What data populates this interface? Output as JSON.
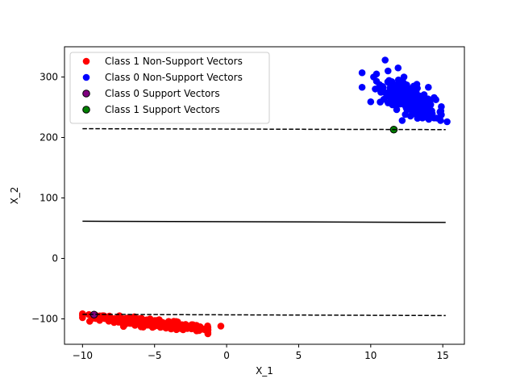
{
  "chart_data": {
    "type": "scatter",
    "title": "",
    "xlabel": "X_1",
    "ylabel": "X_2",
    "xlim": [
      -11.25,
      16.5
    ],
    "ylim": [
      -142,
      350
    ],
    "xticks": [
      -10,
      -5,
      0,
      5,
      10,
      15
    ],
    "yticks": [
      -100,
      0,
      100,
      200,
      300
    ],
    "legend_position": "upper-left",
    "series": [
      {
        "name": "Class 1 Non-Support Vectors",
        "color": "#ff0000",
        "edge": "none",
        "cluster": {
          "x_mean": -5.2,
          "x_sd": 1.9,
          "slope": -1.05,
          "intercept": -116,
          "noise": 3
        },
        "points": [
          [
            -10.0,
            -98
          ],
          [
            -9.5,
            -104
          ],
          [
            -8.8,
            -95
          ],
          [
            -8.2,
            -97
          ],
          [
            -7.8,
            -101
          ],
          [
            -7.2,
            -105
          ],
          [
            -6.6,
            -103
          ],
          [
            -6.0,
            -108
          ],
          [
            -5.5,
            -110
          ],
          [
            -5.0,
            -112
          ],
          [
            -4.4,
            -113
          ],
          [
            -3.9,
            -114
          ],
          [
            -3.2,
            -116
          ],
          [
            -2.7,
            -114
          ],
          [
            -2.2,
            -112
          ],
          [
            -1.5,
            -118
          ],
          [
            -0.4,
            -112
          ]
        ]
      },
      {
        "name": "Class 0 Non-Support Vectors",
        "color": "#0000ff",
        "edge": "none",
        "cluster": {
          "x_mean": 12.7,
          "y_mean": 262,
          "x_sd": 0.9,
          "y_sd": 15,
          "rho": -0.7
        },
        "points": [
          [
            9.4,
            307
          ],
          [
            9.4,
            283
          ],
          [
            10.0,
            259
          ],
          [
            10.4,
            293
          ],
          [
            10.4,
            305
          ],
          [
            10.7,
            282
          ],
          [
            11.0,
            328
          ],
          [
            11.2,
            310
          ],
          [
            11.4,
            274
          ],
          [
            11.9,
            315
          ],
          [
            12.2,
            295
          ],
          [
            13.2,
            288
          ],
          [
            14.0,
            283
          ],
          [
            14.4,
            266
          ],
          [
            14.9,
            251
          ],
          [
            15.3,
            226
          ],
          [
            14.6,
            232
          ],
          [
            13.5,
            236
          ],
          [
            12.4,
            238
          ],
          [
            11.8,
            246
          ]
        ]
      },
      {
        "name": "Class 0 Support Vectors",
        "color": "#800080",
        "edge": "#000000",
        "points": [
          [
            -9.2,
            -93
          ]
        ]
      },
      {
        "name": "Class 1 Support Vectors",
        "color": "#008000",
        "edge": "#000000",
        "points": [
          [
            11.6,
            213
          ]
        ]
      }
    ],
    "lines": [
      {
        "name": "upper-margin",
        "style": "dashed",
        "color": "#000000",
        "x": [
          -10,
          15.2
        ],
        "y": [
          214.5,
          213
        ]
      },
      {
        "name": "decision-boundary",
        "style": "solid",
        "color": "#000000",
        "x": [
          -10,
          15.2
        ],
        "y": [
          61.5,
          59.5
        ]
      },
      {
        "name": "lower-margin",
        "style": "dashed",
        "color": "#000000",
        "x": [
          -10,
          15.2
        ],
        "y": [
          -92.5,
          -94.5
        ]
      }
    ]
  }
}
